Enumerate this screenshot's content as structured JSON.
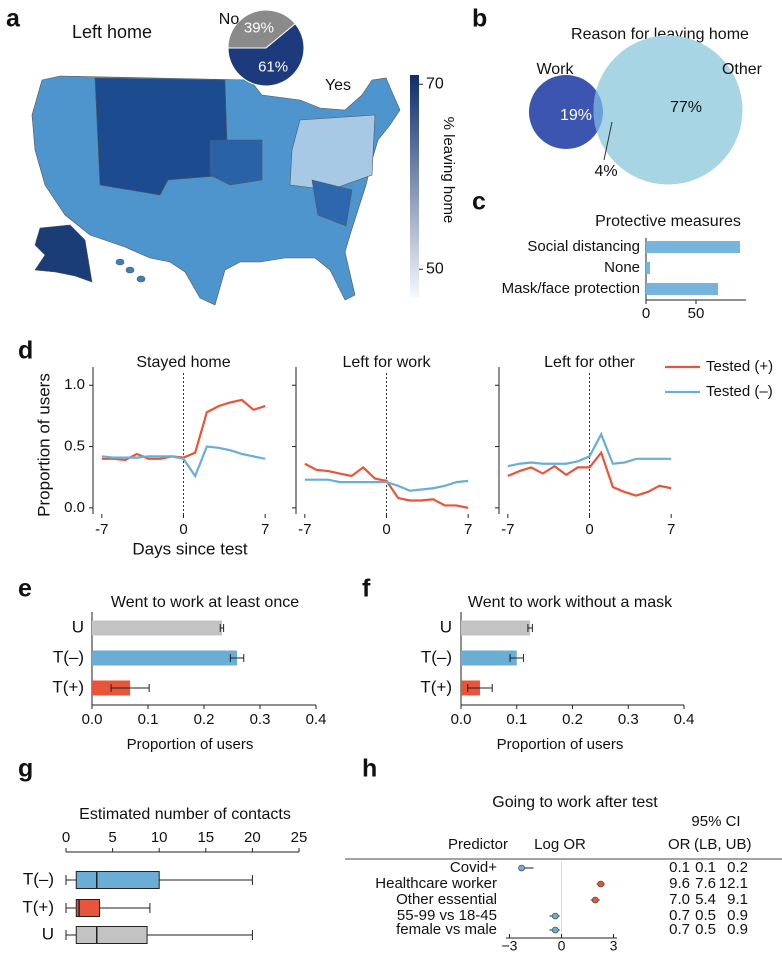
{
  "chart_data": [
    {
      "type": "choropleth",
      "panel": "a",
      "title": "Left home",
      "colorbar_label": "% leaving home",
      "clim": [
        47,
        71
      ],
      "cticks": [
        50,
        70
      ],
      "cmap": [
        "#f5f9fd",
        "#0e2d6b"
      ]
    },
    {
      "type": "pie",
      "categories": [
        "No",
        "Yes"
      ],
      "values": [
        39,
        61
      ],
      "value_labels": [
        "39%",
        "61%"
      ],
      "colors": [
        "#8a8a8a",
        "#1d3a7c"
      ]
    },
    {
      "type": "venn",
      "panel": "b",
      "title": "Reason for leaving home",
      "sets": [
        {
          "name": "Work",
          "value": 19,
          "value_label": "19%",
          "color": "#3c55b0"
        },
        {
          "name": "Other",
          "value": 77,
          "value_label": "77%",
          "color": "#a8d5e4"
        }
      ],
      "overlap": {
        "value": 4,
        "value_label": "4%",
        "color": "#6f9fd9"
      }
    },
    {
      "type": "bar",
      "horizontal": true,
      "panel": "c",
      "title": "Protective measures",
      "categories": [
        "Social distancing",
        "None",
        "Mask/face protection"
      ],
      "values": [
        94,
        4,
        72
      ],
      "color": "#75b4dc",
      "xlim": [
        0,
        100
      ],
      "xticks": [
        0,
        50
      ]
    },
    {
      "type": "line",
      "panel": "d",
      "ylabel": "Proportion of users",
      "xlabel": "Days since test",
      "x": [
        -7,
        -6,
        -5,
        -4,
        -3,
        -2,
        -1,
        0,
        1,
        2,
        3,
        4,
        5,
        6,
        7
      ],
      "xlim": [
        -7.5,
        7.5
      ],
      "xticks": [
        -7,
        0,
        7
      ],
      "ylim": [
        -0.05,
        1.1
      ],
      "yticks": [
        {
          "value": 0,
          "label": "0.0"
        },
        0.5,
        {
          "value": 1,
          "label": "1.0"
        }
      ],
      "series": [
        {
          "name": "Tested (+)",
          "color": "#e8553a"
        },
        {
          "name": "Tested (–)",
          "color": "#6aaed6"
        }
      ],
      "subplots": [
        {
          "title": "Stayed home",
          "values": [
            [
              0.4,
              0.4,
              0.39,
              0.44,
              0.4,
              0.4,
              0.42,
              0.41,
              0.45,
              0.78,
              0.83,
              0.86,
              0.88,
              0.8,
              0.83
            ],
            [
              0.42,
              0.41,
              0.41,
              0.41,
              0.42,
              0.42,
              0.42,
              0.4,
              0.26,
              0.5,
              0.49,
              0.47,
              0.44,
              0.42,
              0.4
            ]
          ]
        },
        {
          "title": "Left for work",
          "values": [
            [
              0.36,
              0.31,
              0.3,
              0.28,
              0.26,
              0.33,
              0.24,
              0.22,
              0.08,
              0.06,
              0.06,
              0.07,
              0.02,
              0.02,
              0.0
            ],
            [
              0.23,
              0.23,
              0.23,
              0.21,
              0.21,
              0.21,
              0.21,
              0.21,
              0.18,
              0.14,
              0.15,
              0.16,
              0.18,
              0.21,
              0.22
            ]
          ]
        },
        {
          "title": "Left for other",
          "values": [
            [
              0.26,
              0.3,
              0.33,
              0.28,
              0.34,
              0.27,
              0.33,
              0.33,
              0.45,
              0.17,
              0.13,
              0.1,
              0.13,
              0.18,
              0.16
            ],
            [
              0.34,
              0.36,
              0.37,
              0.36,
              0.36,
              0.36,
              0.38,
              0.42,
              0.6,
              0.36,
              0.37,
              0.4,
              0.4,
              0.4,
              0.4
            ]
          ]
        }
      ]
    },
    {
      "type": "bar",
      "horizontal": true,
      "panel": "e",
      "title": "Went to work at least once",
      "xlabel": "Proportion of users",
      "categories": [
        "U",
        "T(–)",
        "T(+)"
      ],
      "values": [
        0.232,
        0.259,
        0.068
      ],
      "errors": [
        0.003,
        0.012,
        0.034
      ],
      "colors": [
        "#c3c3c3",
        "#6aaed6",
        "#e8553a"
      ],
      "xlim": [
        0,
        0.4
      ],
      "xticks": [
        {
          "value": 0,
          "label": "0.0"
        },
        0.1,
        0.2,
        0.3,
        0.4
      ]
    },
    {
      "type": "bar",
      "horizontal": true,
      "panel": "f",
      "title": "Went to work without a mask",
      "xlabel": "Proportion of users",
      "categories": [
        "U",
        "T(–)",
        "T(+)"
      ],
      "values": [
        0.124,
        0.1,
        0.034
      ],
      "errors": [
        0.004,
        0.012,
        0.022
      ],
      "colors": [
        "#c3c3c3",
        "#6aaed6",
        "#e8553a"
      ],
      "xlim": [
        0,
        0.4
      ],
      "xticks": [
        {
          "value": 0,
          "label": "0.0"
        },
        0.1,
        0.2,
        0.3,
        0.4
      ]
    },
    {
      "type": "box",
      "panel": "g",
      "title": "Estimated number of contacts",
      "categories": [
        "T(–)",
        "T(+)",
        "U"
      ],
      "boxes": [
        {
          "min": 0,
          "q1": 1.1,
          "median": 3.3,
          "q3": 10,
          "max": 20
        },
        {
          "min": 0,
          "q1": 1.1,
          "median": 1.4,
          "q3": 3.6,
          "max": 9
        },
        {
          "min": 0,
          "q1": 1.1,
          "median": 3.3,
          "q3": 8.7,
          "max": 20
        }
      ],
      "colors": [
        "#6aaed6",
        "#e8553a",
        "#c3c3c3"
      ],
      "xlim": [
        0,
        25
      ],
      "xticks": [
        0,
        5,
        10,
        15,
        20,
        25
      ]
    },
    {
      "type": "forest",
      "panel": "h",
      "title": "Going to work after test",
      "ci_header": "95% CI",
      "columns": [
        "Predictor",
        "Log OR",
        "OR",
        "(LB, UB)"
      ],
      "categories": [
        "Covid+",
        "Healthcare worker",
        "Other essential",
        "55-99 vs 18-45",
        "female vs male"
      ],
      "values": [
        0.1,
        9.6,
        7,
        0.7,
        0.7
      ],
      "value_labels": [
        "0.1",
        "9.6",
        "7.0",
        "0.7",
        "0.7"
      ],
      "lower": [
        0.1,
        7.6,
        5.4,
        0.5,
        0.5
      ],
      "upper": [
        0.2,
        12.1,
        9.1,
        0.9,
        0.9
      ],
      "colors": [
        "#6aaed6",
        "#e8553a",
        "#e8553a",
        "#6aaed6",
        "#6aaed6"
      ],
      "xscale": "ln",
      "xlim": [
        -3.2,
        3.2
      ],
      "xticks": [
        {
          "value": -3,
          "label": "−3"
        },
        0,
        3
      ]
    }
  ]
}
